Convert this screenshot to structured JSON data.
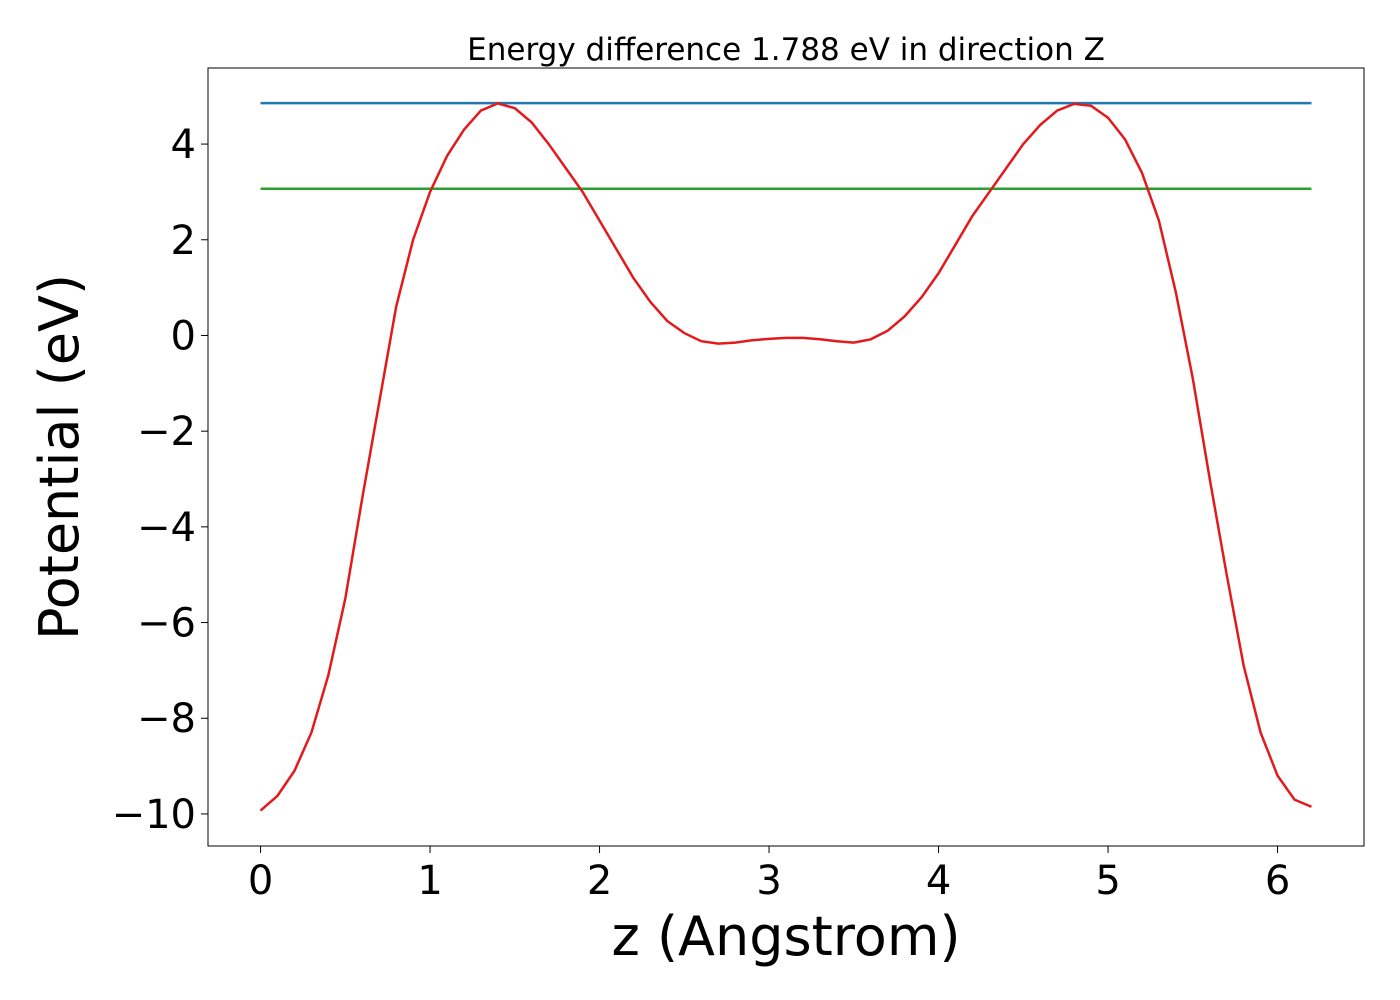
{
  "chart_data": {
    "type": "line",
    "title": "Energy difference 1.788 eV in direction Z",
    "xlabel": "z (Angstrom)",
    "ylabel": "Potential (eV)",
    "xlim": [
      -0.31,
      6.51
    ],
    "ylim": [
      -10.67,
      5.59
    ],
    "xticks": [
      0,
      1,
      2,
      3,
      4,
      5,
      6
    ],
    "yticks": [
      {
        "value": -10,
        "label": "−10"
      },
      {
        "value": -8,
        "label": "−8"
      },
      {
        "value": -6,
        "label": "−6"
      },
      {
        "value": -4,
        "label": "−4"
      },
      {
        "value": -2,
        "label": "−2"
      },
      0,
      2,
      4
    ],
    "series": [
      {
        "color": "#1f77b4",
        "x": [
          0,
          6.2
        ],
        "values": [
          4.855,
          4.855
        ]
      },
      {
        "color": "#2ca02c",
        "x": [
          0,
          6.2
        ],
        "values": [
          3.067,
          3.067
        ]
      },
      {
        "color": "#e31a1c",
        "x": [
          0,
          0.1,
          0.2,
          0.3,
          0.4,
          0.5,
          0.6,
          0.7,
          0.8,
          0.9,
          1.0,
          1.1,
          1.2,
          1.3,
          1.4,
          1.5,
          1.6,
          1.7,
          1.8,
          1.9,
          2.0,
          2.1,
          2.2,
          2.3,
          2.4,
          2.5,
          2.6,
          2.7,
          2.8,
          2.9,
          3.0,
          3.1,
          3.2,
          3.3,
          3.4,
          3.5,
          3.6,
          3.7,
          3.8,
          3.9,
          4.0,
          4.1,
          4.2,
          4.3,
          4.4,
          4.5,
          4.6,
          4.7,
          4.8,
          4.9,
          5.0,
          5.1,
          5.2,
          5.3,
          5.4,
          5.5,
          5.6,
          5.7,
          5.8,
          5.9,
          6.0,
          6.1,
          6.2
        ],
        "values": [
          -9.93,
          -9.62,
          -9.1,
          -8.3,
          -7.1,
          -5.5,
          -3.4,
          -1.4,
          0.6,
          2.0,
          3.0,
          3.75,
          4.3,
          4.7,
          4.85,
          4.75,
          4.45,
          4.0,
          3.5,
          3.0,
          2.4,
          1.8,
          1.2,
          0.7,
          0.3,
          0.05,
          -0.12,
          -0.17,
          -0.15,
          -0.1,
          -0.07,
          -0.05,
          -0.05,
          -0.08,
          -0.12,
          -0.15,
          -0.08,
          0.1,
          0.4,
          0.8,
          1.3,
          1.9,
          2.5,
          3.0,
          3.5,
          4.0,
          4.4,
          4.7,
          4.84,
          4.8,
          4.55,
          4.1,
          3.4,
          2.4,
          0.9,
          -0.9,
          -3.0,
          -5.0,
          -6.9,
          -8.3,
          -9.2,
          -9.7,
          -9.85
        ]
      }
    ]
  }
}
